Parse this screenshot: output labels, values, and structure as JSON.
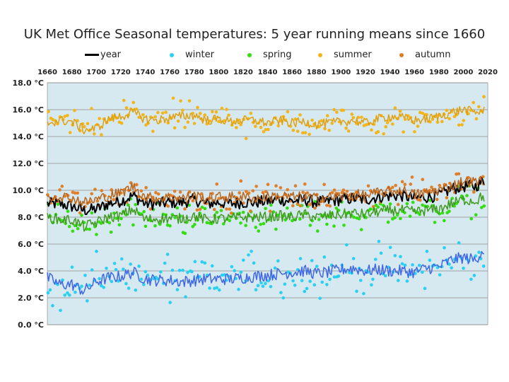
{
  "chart_data": {
    "type": "line",
    "title": "UK Met Office Seasonal temperatures:  5 year running means since 1660",
    "xlabel": "",
    "ylabel": "",
    "xlim": [
      1660,
      2020
    ],
    "ylim": [
      0,
      18
    ],
    "x_ticks": [
      1660,
      1680,
      1700,
      1720,
      1740,
      1760,
      1780,
      1800,
      1820,
      1840,
      1860,
      1880,
      1900,
      1920,
      1940,
      1960,
      1980,
      2000,
      2020
    ],
    "y_ticks": [
      0,
      2,
      4,
      6,
      8,
      10,
      12,
      14,
      16,
      18
    ],
    "y_tick_labels": [
      "0.0 °C",
      "2.0 °C",
      "4.0 °C",
      "6.0 °C",
      "8.0 °C",
      "10.0 °C",
      "12.0 °C",
      "14.0 °C",
      "16.0 °C",
      "18.0 °C"
    ],
    "x_axis_position": "top",
    "grid": "horizontal",
    "legend_position": "top",
    "plot_background": "#d6e9f1",
    "series": [
      {
        "name": "year",
        "color": "#000000",
        "marker": "line",
        "x": [
          1660,
          1670,
          1680,
          1690,
          1700,
          1710,
          1720,
          1730,
          1740,
          1750,
          1760,
          1770,
          1780,
          1790,
          1800,
          1810,
          1820,
          1830,
          1840,
          1850,
          1860,
          1870,
          1880,
          1890,
          1900,
          1910,
          1920,
          1930,
          1940,
          1950,
          1960,
          1970,
          1980,
          1990,
          2000,
          2010,
          2015
        ],
        "y": [
          9.0,
          9.0,
          8.8,
          8.5,
          8.6,
          9.0,
          9.2,
          9.6,
          9.0,
          9.0,
          9.1,
          9.1,
          9.3,
          9.0,
          9.1,
          9.0,
          9.1,
          9.1,
          9.2,
          9.3,
          9.2,
          9.3,
          9.1,
          9.2,
          9.3,
          9.4,
          9.3,
          9.5,
          9.6,
          9.6,
          9.4,
          9.5,
          9.6,
          10.1,
          10.3,
          10.3,
          10.6
        ]
      },
      {
        "name": "winter",
        "color": "#2ad0f0",
        "marker": "dot",
        "x": [
          1660,
          1670,
          1680,
          1690,
          1700,
          1710,
          1720,
          1730,
          1740,
          1750,
          1760,
          1770,
          1780,
          1790,
          1800,
          1810,
          1820,
          1830,
          1840,
          1850,
          1860,
          1870,
          1880,
          1890,
          1900,
          1910,
          1920,
          1930,
          1940,
          1950,
          1960,
          1970,
          1980,
          1990,
          2000,
          2010,
          2015
        ],
        "y": [
          3.5,
          3.0,
          3.0,
          2.5,
          3.2,
          3.5,
          3.6,
          3.9,
          3.4,
          3.3,
          3.3,
          3.2,
          3.3,
          3.4,
          3.4,
          3.4,
          3.5,
          3.6,
          3.7,
          3.8,
          3.9,
          4.0,
          3.8,
          3.9,
          4.1,
          4.2,
          4.0,
          4.1,
          4.0,
          4.0,
          3.9,
          4.2,
          4.3,
          4.8,
          5.0,
          4.8,
          5.5
        ]
      },
      {
        "name": "spring",
        "color": "#33dd11",
        "marker": "dot",
        "x": [
          1660,
          1670,
          1680,
          1690,
          1700,
          1710,
          1720,
          1730,
          1740,
          1750,
          1760,
          1770,
          1780,
          1790,
          1800,
          1810,
          1820,
          1830,
          1840,
          1850,
          1860,
          1870,
          1880,
          1890,
          1900,
          1910,
          1920,
          1930,
          1940,
          1950,
          1960,
          1970,
          1980,
          1990,
          2000,
          2010,
          2015
        ],
        "y": [
          8.0,
          7.8,
          7.8,
          7.3,
          7.6,
          8.0,
          8.1,
          8.6,
          7.8,
          7.9,
          7.9,
          7.9,
          8.1,
          7.8,
          7.9,
          7.9,
          8.0,
          8.0,
          8.0,
          8.1,
          8.0,
          8.2,
          8.0,
          8.1,
          8.2,
          8.3,
          8.2,
          8.4,
          8.5,
          8.5,
          8.4,
          8.5,
          8.6,
          9.0,
          9.3,
          9.2,
          9.5
        ]
      },
      {
        "name": "summer",
        "color": "#f2b51c",
        "marker": "dot",
        "x": [
          1660,
          1670,
          1680,
          1690,
          1700,
          1710,
          1720,
          1730,
          1740,
          1750,
          1760,
          1770,
          1780,
          1790,
          1800,
          1810,
          1820,
          1830,
          1840,
          1850,
          1860,
          1870,
          1880,
          1890,
          1900,
          1910,
          1920,
          1930,
          1940,
          1950,
          1960,
          1970,
          1980,
          1990,
          2000,
          2010,
          2015
        ],
        "y": [
          15.0,
          15.2,
          15.1,
          14.5,
          14.6,
          15.3,
          15.5,
          15.8,
          15.3,
          15.2,
          15.4,
          15.5,
          15.6,
          15.2,
          15.3,
          15.1,
          15.2,
          15.2,
          15.0,
          15.2,
          15.0,
          15.1,
          14.9,
          15.0,
          15.1,
          15.2,
          15.0,
          15.3,
          15.5,
          15.4,
          15.2,
          15.3,
          15.5,
          15.8,
          16.0,
          15.8,
          15.9
        ]
      },
      {
        "name": "autumn",
        "color": "#e07f2a",
        "marker": "dot",
        "x": [
          1660,
          1670,
          1680,
          1690,
          1700,
          1710,
          1720,
          1730,
          1740,
          1750,
          1760,
          1770,
          1780,
          1790,
          1800,
          1810,
          1820,
          1830,
          1840,
          1850,
          1860,
          1870,
          1880,
          1890,
          1900,
          1910,
          1920,
          1930,
          1940,
          1950,
          1960,
          1970,
          1980,
          1990,
          2000,
          2010,
          2015
        ],
        "y": [
          9.5,
          9.6,
          9.4,
          9.1,
          9.3,
          9.6,
          9.8,
          10.3,
          9.5,
          9.4,
          9.5,
          9.4,
          9.6,
          9.4,
          9.5,
          9.5,
          9.5,
          9.4,
          9.5,
          9.6,
          9.5,
          9.5,
          9.4,
          9.5,
          9.5,
          9.7,
          9.6,
          9.8,
          9.9,
          10.0,
          9.7,
          9.8,
          10.0,
          10.3,
          10.7,
          10.6,
          10.8
        ]
      }
    ]
  }
}
